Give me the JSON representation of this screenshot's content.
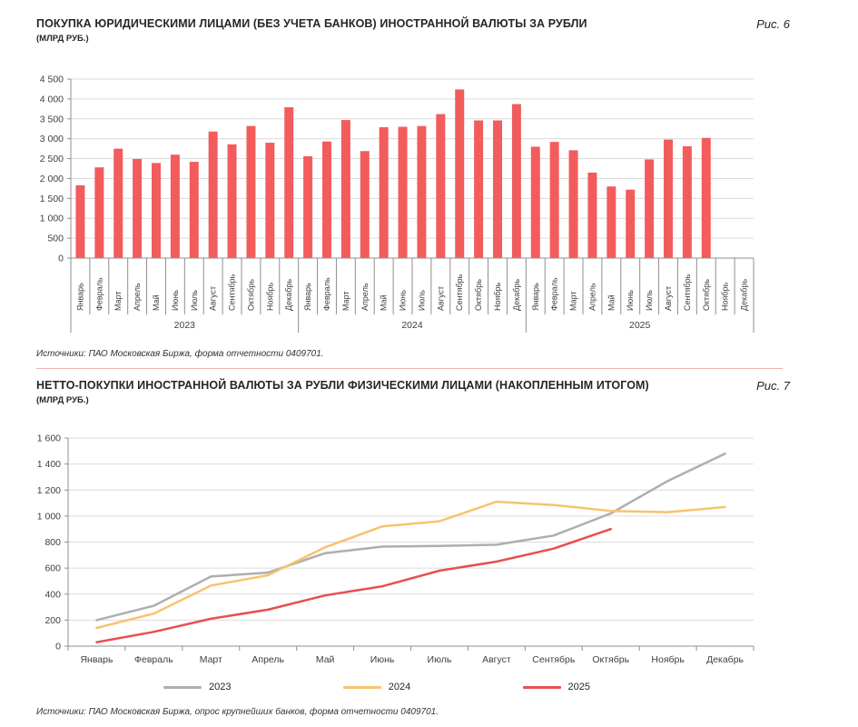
{
  "theme": {
    "grid_color": "#dcdcdc",
    "axis_color": "#8f8f8f",
    "divider_color": "#f0b2b2",
    "bar_red": "#f25c5c",
    "line_gray": "#aeaeae",
    "line_yellow": "#f6c46d",
    "line_red": "#e84f4f"
  },
  "fig6": {
    "label": "Рис. 6",
    "source": "Источники: ПАО Московская Биржа, форма отчетности 0409701."
  },
  "fig7": {
    "label": "Рис. 7",
    "source": "Источники: ПАО Московская Биржа, опрос крупнейших банков, форма отчетности 0409701."
  },
  "chart_data": [
    {
      "type": "bar",
      "title": "ПОКУПКА ЮРИДИЧЕСКИМИ ЛИЦАМИ (БЕЗ УЧЕТА БАНКОВ) ИНОСТРАННОЙ ВАЛЮТЫ ЗА РУБЛИ",
      "unit": "(МЛРД РУБ.)",
      "bar_color": "#f25c5c",
      "ylim": [
        0,
        4500
      ],
      "ytick_step": 500,
      "yticks": [
        "0",
        "500",
        "1 000",
        "1 500",
        "2 000",
        "2 500",
        "3 000",
        "3 500",
        "4 000",
        "4 500"
      ],
      "categories": [
        "Январь",
        "Февраль",
        "Март",
        "Апрель",
        "Май",
        "Июнь",
        "Июль",
        "Август",
        "Сентябрь",
        "Октябрь",
        "Ноябрь",
        "Декабрь"
      ],
      "groups": [
        {
          "year": "2023",
          "values": [
            1830,
            2280,
            2750,
            2490,
            2390,
            2600,
            2420,
            3180,
            2860,
            3320,
            2900,
            3790
          ]
        },
        {
          "year": "2024",
          "values": [
            2560,
            2930,
            3470,
            2690,
            3290,
            3300,
            3320,
            3620,
            4240,
            3460,
            3460,
            3870
          ]
        },
        {
          "year": "2025",
          "values": [
            2800,
            2920,
            2710,
            2150,
            1800,
            1720,
            2480,
            2980,
            2810,
            3020,
            null,
            null
          ]
        }
      ]
    },
    {
      "type": "line",
      "title": "НЕТТО-ПОКУПКИ ИНОСТРАННОЙ ВАЛЮТЫ ЗА РУБЛИ ФИЗИЧЕСКИМИ ЛИЦАМИ (НАКОПЛЕННЫМ ИТОГОМ)",
      "unit": "(МЛРД РУБ.)",
      "ylim": [
        0,
        1600
      ],
      "ytick_step": 200,
      "yticks": [
        "0",
        "200",
        "400",
        "600",
        "800",
        "1 000",
        "1 200",
        "1 400",
        "1 600"
      ],
      "categories": [
        "Январь",
        "Февраль",
        "Март",
        "Апрель",
        "Май",
        "Июнь",
        "Июль",
        "Август",
        "Сентябрь",
        "Октябрь",
        "Ноябрь",
        "Декабрь"
      ],
      "legend_position": "bottom",
      "series": [
        {
          "name": "2023",
          "color": "#aeaeae",
          "values": [
            200,
            310,
            535,
            565,
            715,
            765,
            770,
            780,
            850,
            1020,
            1270,
            1480
          ]
        },
        {
          "name": "2024",
          "color": "#f6c46d",
          "values": [
            140,
            250,
            465,
            545,
            760,
            920,
            960,
            1110,
            1085,
            1040,
            1030,
            1070
          ]
        },
        {
          "name": "2025",
          "color": "#e84f4f",
          "values": [
            30,
            110,
            210,
            280,
            390,
            460,
            580,
            650,
            750,
            900,
            null,
            null
          ]
        }
      ]
    }
  ]
}
